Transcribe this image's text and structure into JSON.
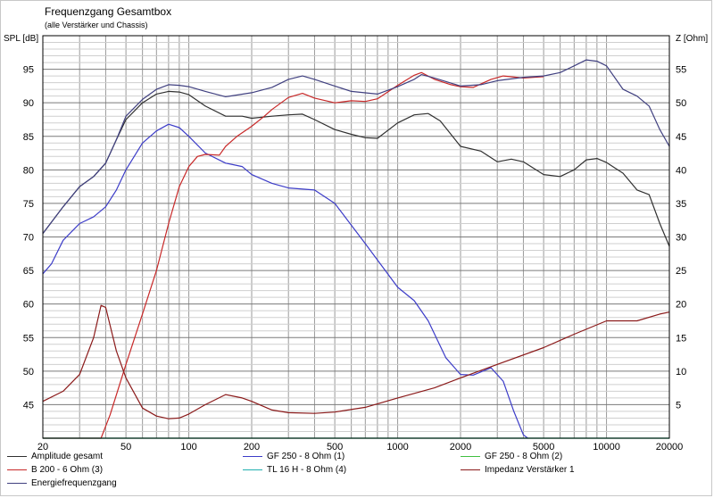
{
  "chart_data": {
    "type": "line",
    "title": "Frequenzgang Gesamtbox",
    "subtitle": "(alle Verstärker und Chassis)",
    "ylabel_left": "SPL [dB]",
    "ylabel_right": "Z [Ohm]",
    "x_scale": "log",
    "xlim": [
      20,
      20000
    ],
    "ylim_left": [
      40,
      100
    ],
    "ylim_right": [
      0,
      60
    ],
    "grid": true,
    "legend_position": "bottom",
    "x_ticks": [
      20,
      50,
      100,
      200,
      500,
      1000,
      2000,
      5000,
      10000,
      20000
    ],
    "x_tick_labels": [
      "20",
      "50",
      "100",
      "200",
      "500",
      "1000",
      "2000",
      "5000",
      "10000",
      "20000"
    ],
    "y_ticks_left": [
      45,
      50,
      55,
      60,
      65,
      70,
      75,
      80,
      85,
      90,
      95
    ],
    "y_tick_labels_left": [
      "45",
      "50",
      "55",
      "60",
      "65",
      "70",
      "75",
      "80",
      "85",
      "90",
      "95"
    ],
    "y_ticks_right": [
      5,
      10,
      15,
      20,
      25,
      30,
      35,
      40,
      45,
      50,
      55
    ],
    "y_tick_labels_right": [
      "5",
      "10",
      "15",
      "20",
      "25",
      "30",
      "35",
      "40",
      "45",
      "50",
      "55"
    ],
    "series": [
      {
        "name": "Amplitude gesamt",
        "axis": "left",
        "color": "#303030",
        "x": [
          20,
          25,
          30,
          35,
          40,
          45,
          50,
          60,
          70,
          80,
          90,
          100,
          120,
          150,
          180,
          200,
          250,
          300,
          350,
          400,
          500,
          600,
          700,
          800,
          1000,
          1200,
          1400,
          1600,
          2000,
          2500,
          3000,
          3500,
          4000,
          5000,
          6000,
          7000,
          8000,
          9000,
          10000,
          12000,
          14000,
          16000,
          18000,
          20000
        ],
        "values": [
          70.5,
          74.5,
          77.5,
          79,
          81,
          84.5,
          87.5,
          90,
          91.3,
          91.7,
          91.6,
          91.2,
          89.5,
          88,
          88,
          87.7,
          88,
          88.2,
          88.3,
          87.5,
          86,
          85.3,
          84.8,
          84.7,
          87,
          88.2,
          88.4,
          87.3,
          83.5,
          82.8,
          81.2,
          81.6,
          81.2,
          79.3,
          79,
          80,
          81.5,
          81.7,
          81.1,
          79.5,
          77,
          76.3,
          72,
          68.6
        ]
      },
      {
        "name": "GF 250 - 8 Ohm (1)",
        "axis": "left",
        "color": "#3c3cc8",
        "x": [
          20,
          22,
          25,
          30,
          35,
          40,
          45,
          50,
          60,
          70,
          80,
          90,
          100,
          120,
          150,
          180,
          200,
          250,
          300,
          400,
          500,
          700,
          1000,
          1200,
          1400,
          1700,
          2000,
          2300,
          2800,
          3200,
          3600,
          4000,
          4200
        ],
        "values": [
          64.5,
          66,
          69.5,
          72,
          73,
          74.5,
          77,
          80,
          84,
          85.8,
          86.8,
          86.3,
          85,
          82.5,
          81,
          80.5,
          79.3,
          78,
          77.3,
          77,
          75,
          69,
          62.5,
          60.5,
          57.5,
          52,
          49.5,
          49.4,
          50.5,
          48.5,
          44,
          40.5,
          40
        ]
      },
      {
        "name": "GF 250 - 8 Ohm (2)",
        "axis": "left",
        "color": "#40c040",
        "x": [
          20,
          20000
        ],
        "values": [
          40,
          40
        ]
      },
      {
        "name": "B 200 - 6 Ohm (3)",
        "axis": "left",
        "color": "#c82828",
        "x": [
          20,
          35,
          38,
          42,
          50,
          60,
          70,
          80,
          90,
          100,
          110,
          120,
          140,
          150,
          170,
          200,
          230,
          250,
          300,
          350,
          400,
          500,
          600,
          700,
          800,
          1000,
          1200,
          1300,
          1500,
          1800,
          2000,
          2300,
          2800,
          3200,
          4000,
          5000
        ],
        "values": [
          40,
          40,
          40,
          43.5,
          51,
          58.5,
          65,
          72,
          77.5,
          80.5,
          82,
          82.3,
          82.2,
          83.5,
          85,
          86.5,
          88,
          89,
          90.8,
          91.4,
          90.7,
          90,
          90.3,
          90.2,
          90.6,
          92.6,
          94.1,
          94.5,
          93.5,
          92.7,
          92.4,
          92.3,
          93.5,
          94,
          93.7,
          93.9
        ]
      },
      {
        "name": "TL 16 H - 8 Ohm (4)",
        "axis": "left",
        "color": "#20b0b0",
        "x": [
          20,
          20000
        ],
        "values": [
          40,
          40
        ]
      },
      {
        "name": "Impedanz Verstärker 1",
        "axis": "right",
        "color": "#8b1a1a",
        "x": [
          20,
          25,
          30,
          35,
          38,
          40,
          45,
          50,
          60,
          70,
          80,
          90,
          100,
          120,
          150,
          180,
          200,
          250,
          300,
          400,
          500,
          700,
          1000,
          1500,
          2000,
          3000,
          5000,
          7000,
          10000,
          14000,
          18000,
          20000
        ],
        "values": [
          5.5,
          7,
          9.5,
          15,
          19.8,
          19.5,
          13,
          9,
          4.5,
          3.3,
          2.9,
          3,
          3.6,
          5,
          6.5,
          6,
          5.5,
          4.2,
          3.8,
          3.7,
          3.9,
          4.6,
          6,
          7.5,
          9,
          11,
          13.5,
          15.5,
          17.5,
          17.5,
          18.5,
          18.8
        ]
      },
      {
        "name": "Energiefrequenzgang",
        "axis": "left",
        "color": "#404080",
        "x": [
          20,
          25,
          30,
          35,
          40,
          45,
          50,
          60,
          70,
          80,
          90,
          100,
          120,
          150,
          200,
          250,
          300,
          350,
          400,
          500,
          600,
          800,
          1000,
          1200,
          1300,
          1500,
          2000,
          2500,
          3000,
          4000,
          5000,
          6000,
          7000,
          8000,
          9000,
          10000,
          12000,
          14000,
          16000,
          18000,
          20000
        ],
        "values": [
          70.5,
          74.5,
          77.5,
          79,
          81,
          84.5,
          88,
          90.5,
          92,
          92.7,
          92.6,
          92.4,
          91.7,
          90.9,
          91.5,
          92.3,
          93.5,
          94,
          93.5,
          92.5,
          91.7,
          91.3,
          92.4,
          93.5,
          94.2,
          93.7,
          92.5,
          92.7,
          93.3,
          93.8,
          94,
          94.5,
          95.5,
          96.4,
          96.2,
          95.5,
          92,
          91,
          89.5,
          86,
          83.5
        ]
      }
    ]
  },
  "legend": {
    "items": [
      {
        "label": "Amplitude gesamt",
        "color": "#303030"
      },
      {
        "label": "GF 250 - 8 Ohm (1)",
        "color": "#3c3cc8"
      },
      {
        "label": "GF 250 - 8 Ohm (2)",
        "color": "#40c040"
      },
      {
        "label": "B 200 - 6 Ohm (3)",
        "color": "#c82828"
      },
      {
        "label": "TL 16 H - 8 Ohm (4)",
        "color": "#20b0b0"
      },
      {
        "label": "Impedanz Verstärker 1",
        "color": "#8b1a1a"
      },
      {
        "label": "Energiefrequenzgang",
        "color": "#404080"
      }
    ]
  }
}
